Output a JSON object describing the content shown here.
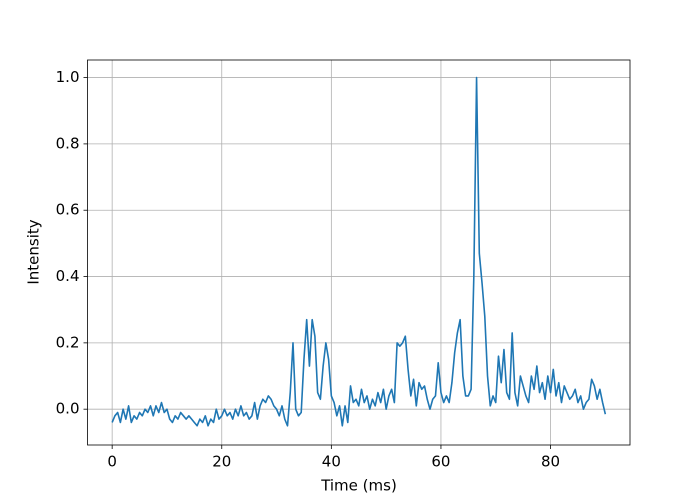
{
  "chart_data": {
    "type": "line",
    "xlabel": "Time (ms)",
    "ylabel": "Intensity",
    "x": [
      0,
      0.5,
      1,
      1.5,
      2,
      2.5,
      3,
      3.5,
      4,
      4.5,
      5,
      5.5,
      6,
      6.5,
      7,
      7.5,
      8,
      8.5,
      9,
      9.5,
      10,
      10.5,
      11,
      11.5,
      12,
      12.5,
      13,
      13.5,
      14,
      14.5,
      15,
      15.5,
      16,
      16.5,
      17,
      17.5,
      18,
      18.5,
      19,
      19.5,
      20,
      20.5,
      21,
      21.5,
      22,
      22.5,
      23,
      23.5,
      24,
      24.5,
      25,
      25.5,
      26,
      26.5,
      27,
      27.5,
      28,
      28.5,
      29,
      29.5,
      30,
      30.5,
      31,
      31.5,
      32,
      32.5,
      33,
      33.5,
      34,
      34.5,
      35,
      35.5,
      36,
      36.5,
      37,
      37.5,
      38,
      38.5,
      39,
      39.5,
      40,
      40.5,
      41,
      41.5,
      42,
      42.5,
      43,
      43.5,
      44,
      44.5,
      45,
      45.5,
      46,
      46.5,
      47,
      47.5,
      48,
      48.5,
      49,
      49.5,
      50,
      50.5,
      51,
      51.5,
      52,
      52.5,
      53,
      53.5,
      54,
      54.5,
      55,
      55.5,
      56,
      56.5,
      57,
      57.5,
      58,
      58.5,
      59,
      59.5,
      60,
      60.5,
      61,
      61.5,
      62,
      62.5,
      63,
      63.5,
      64,
      64.5,
      65,
      65.5,
      66,
      66.5,
      67,
      67.5,
      68,
      68.5,
      69,
      69.5,
      70,
      70.5,
      71,
      71.5,
      72,
      72.5,
      73,
      73.5,
      74,
      74.5,
      75,
      75.5,
      76,
      76.5,
      77,
      77.5,
      78,
      78.5,
      79,
      79.5,
      80,
      80.5,
      81,
      81.5,
      82,
      82.5,
      83,
      83.5,
      84,
      84.5,
      85,
      85.5,
      86,
      86.5,
      87,
      87.5,
      88,
      88.5,
      89,
      89.5,
      90
    ],
    "series": [
      {
        "color": "#1f77b4",
        "values": [
          -0.04,
          -0.02,
          -0.01,
          -0.04,
          0.0,
          -0.03,
          0.01,
          -0.04,
          -0.02,
          -0.03,
          -0.01,
          -0.02,
          0.0,
          -0.01,
          0.01,
          -0.02,
          0.01,
          -0.01,
          0.02,
          -0.01,
          0.0,
          -0.03,
          -0.04,
          -0.02,
          -0.03,
          -0.01,
          -0.02,
          -0.03,
          -0.02,
          -0.03,
          -0.04,
          -0.05,
          -0.03,
          -0.04,
          -0.02,
          -0.05,
          -0.03,
          -0.04,
          0.0,
          -0.03,
          -0.02,
          0.0,
          -0.02,
          -0.01,
          -0.03,
          0.0,
          -0.02,
          0.01,
          -0.02,
          -0.01,
          -0.03,
          -0.02,
          0.02,
          -0.03,
          0.01,
          0.03,
          0.02,
          0.04,
          0.03,
          0.01,
          0.0,
          -0.02,
          0.01,
          -0.03,
          -0.05,
          0.05,
          0.2,
          0.0,
          -0.02,
          -0.01,
          0.15,
          0.27,
          0.13,
          0.27,
          0.22,
          0.05,
          0.03,
          0.13,
          0.2,
          0.15,
          0.04,
          0.02,
          -0.02,
          0.01,
          -0.05,
          0.01,
          -0.04,
          0.07,
          0.02,
          0.03,
          0.01,
          0.06,
          0.02,
          0.04,
          0.0,
          0.03,
          0.01,
          0.05,
          0.02,
          0.06,
          0.0,
          0.04,
          0.06,
          0.02,
          0.2,
          0.19,
          0.2,
          0.22,
          0.12,
          0.04,
          0.09,
          0.01,
          0.08,
          0.06,
          0.07,
          0.03,
          0.0,
          0.03,
          0.04,
          0.14,
          0.05,
          0.02,
          0.04,
          0.02,
          0.08,
          0.17,
          0.23,
          0.27,
          0.1,
          0.04,
          0.04,
          0.06,
          0.4,
          1.0,
          0.47,
          0.38,
          0.28,
          0.1,
          0.01,
          0.04,
          0.02,
          0.16,
          0.08,
          0.18,
          0.05,
          0.03,
          0.23,
          0.05,
          0.01,
          0.1,
          0.07,
          0.04,
          0.02,
          0.1,
          0.06,
          0.13,
          0.05,
          0.08,
          0.03,
          0.1,
          0.05,
          0.12,
          0.04,
          0.08,
          0.02,
          0.07,
          0.05,
          0.03,
          0.04,
          0.06,
          0.02,
          0.04,
          0.0,
          0.02,
          0.03,
          0.09,
          0.07,
          0.03,
          0.06,
          0.02,
          -0.015
        ]
      }
    ],
    "xlim": [
      -4.5,
      94.5
    ],
    "ylim": [
      -0.108,
      1.053
    ],
    "xticks": [
      0,
      20,
      40,
      60,
      80
    ],
    "yticks": [
      {
        "value": 0,
        "label": "0.0"
      },
      {
        "value": 0.2,
        "label": "0.2"
      },
      {
        "value": 0.4,
        "label": "0.4"
      },
      {
        "value": 0.6,
        "label": "0.6"
      },
      {
        "value": 0.8,
        "label": "0.8"
      },
      {
        "value": 1,
        "label": "1.0"
      }
    ],
    "grid": true
  }
}
